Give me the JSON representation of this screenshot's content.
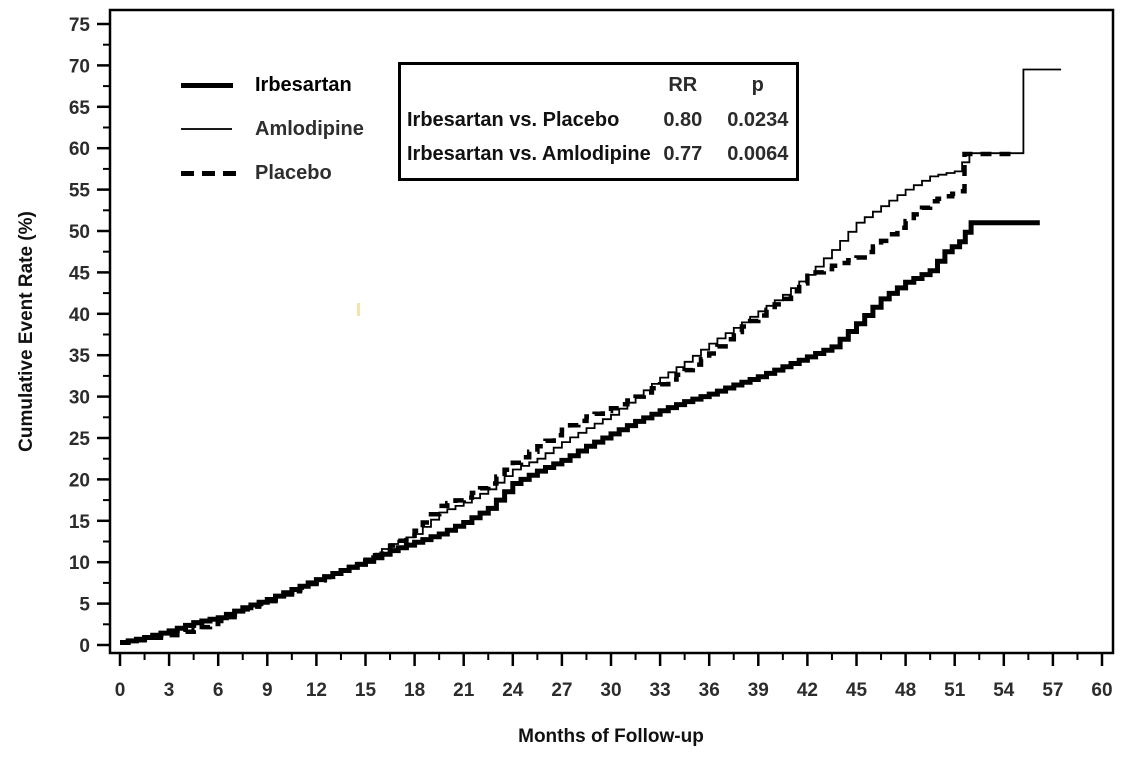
{
  "figure": {
    "background": "#ffffff",
    "line_color": "#000000"
  },
  "legend": {
    "items": [
      {
        "label": "Irbesartan",
        "line_style": "solid-thick"
      },
      {
        "label": "Amlodipine",
        "line_style": "solid-thin"
      },
      {
        "label": "Placebo",
        "line_style": "dashed-thick"
      }
    ]
  },
  "stats_box": {
    "col_headers": [
      "RR",
      "p"
    ],
    "rows": [
      {
        "label": "Irbesartan vs. Placebo",
        "rr": "0.80",
        "p": "0.0234"
      },
      {
        "label": "Irbesartan vs. Amlodipine",
        "rr": "0.77",
        "p": "0.0064"
      }
    ]
  },
  "chart_data": {
    "type": "line",
    "step": true,
    "title": "",
    "xlabel": "Months of Follow-up",
    "ylabel": "Cumulative Event Rate (%)",
    "xlim": [
      0,
      60
    ],
    "ylim": [
      0,
      75
    ],
    "x_major_ticks": [
      0,
      3,
      6,
      9,
      12,
      15,
      18,
      21,
      24,
      27,
      30,
      33,
      36,
      39,
      42,
      45,
      48,
      51,
      54,
      57,
      60
    ],
    "x_minor_step": 1.5,
    "y_major_ticks": [
      0,
      5,
      10,
      15,
      20,
      25,
      30,
      35,
      40,
      45,
      50,
      55,
      60,
      65,
      70,
      75
    ],
    "y_minor_step": 2.5,
    "grid": false,
    "legend_position": "top-left-inside",
    "series": [
      {
        "name": "Irbesartan",
        "line_style": "solid-thick",
        "points": [
          [
            0,
            0.3
          ],
          [
            1.5,
            0.9
          ],
          [
            3,
            1.7
          ],
          [
            4.5,
            2.7
          ],
          [
            6,
            3.3
          ],
          [
            7.5,
            4.5
          ],
          [
            9,
            5.5
          ],
          [
            10.5,
            6.7
          ],
          [
            12,
            7.9
          ],
          [
            13.5,
            9.0
          ],
          [
            15,
            10.1
          ],
          [
            16.5,
            11.4
          ],
          [
            18,
            12.4
          ],
          [
            19.5,
            13.4
          ],
          [
            21,
            14.8
          ],
          [
            22.5,
            16.5
          ],
          [
            24,
            19.5
          ],
          [
            25.5,
            21.0
          ],
          [
            27,
            22.3
          ],
          [
            28.5,
            24.0
          ],
          [
            30,
            25.5
          ],
          [
            31.5,
            27.0
          ],
          [
            33,
            28.3
          ],
          [
            34.5,
            29.4
          ],
          [
            36,
            30.3
          ],
          [
            37.5,
            31.4
          ],
          [
            39,
            32.4
          ],
          [
            40.5,
            33.6
          ],
          [
            42,
            34.8
          ],
          [
            43.5,
            36.0
          ],
          [
            45,
            38.8
          ],
          [
            46.5,
            41.8
          ],
          [
            48,
            43.8
          ],
          [
            49.5,
            45.2
          ],
          [
            50.4,
            47.5
          ],
          [
            51.3,
            48.7
          ],
          [
            52,
            51.0
          ],
          [
            56.2,
            51.0
          ]
        ]
      },
      {
        "name": "Amlodipine",
        "line_style": "solid-thin",
        "points": [
          [
            0,
            0.3
          ],
          [
            1.5,
            0.8
          ],
          [
            3,
            1.6
          ],
          [
            4.5,
            2.5
          ],
          [
            6,
            3.2
          ],
          [
            7.5,
            4.4
          ],
          [
            9,
            5.4
          ],
          [
            10.5,
            6.6
          ],
          [
            12,
            7.8
          ],
          [
            13.5,
            9.0
          ],
          [
            15,
            10.4
          ],
          [
            16.5,
            12.2
          ],
          [
            18,
            13.4
          ],
          [
            19.5,
            16.0
          ],
          [
            21,
            17.2
          ],
          [
            22.5,
            18.8
          ],
          [
            24,
            21.2
          ],
          [
            25.5,
            22.5
          ],
          [
            27,
            24.5
          ],
          [
            28.5,
            26.2
          ],
          [
            30,
            27.8
          ],
          [
            31.5,
            30.0
          ],
          [
            33,
            32.3
          ],
          [
            34.5,
            34.2
          ],
          [
            36,
            36.4
          ],
          [
            37.5,
            38.3
          ],
          [
            39,
            40.3
          ],
          [
            40.5,
            42.3
          ],
          [
            42,
            44.7
          ],
          [
            43.5,
            47.7
          ],
          [
            45,
            51.0
          ],
          [
            46.5,
            53.0
          ],
          [
            48,
            55.0
          ],
          [
            49.5,
            56.6
          ],
          [
            51,
            57.2
          ],
          [
            51.9,
            59.4
          ],
          [
            55.2,
            59.4
          ],
          [
            55.2,
            69.5
          ],
          [
            57.5,
            69.5
          ]
        ]
      },
      {
        "name": "Placebo",
        "line_style": "dashed-thick",
        "points": [
          [
            0,
            0.3
          ],
          [
            1.5,
            0.7
          ],
          [
            3,
            1.2
          ],
          [
            4.5,
            1.8
          ],
          [
            6,
            2.9
          ],
          [
            7.5,
            4.3
          ],
          [
            9,
            5.3
          ],
          [
            10.5,
            6.5
          ],
          [
            12,
            7.8
          ],
          [
            13.5,
            9.0
          ],
          [
            15,
            10.3
          ],
          [
            16.5,
            12.0
          ],
          [
            18,
            13.8
          ],
          [
            19.5,
            16.8
          ],
          [
            21,
            17.8
          ],
          [
            22.5,
            19.5
          ],
          [
            24,
            22.0
          ],
          [
            25.5,
            24.0
          ],
          [
            27,
            26.0
          ],
          [
            28.5,
            27.6
          ],
          [
            30,
            28.6
          ],
          [
            31.5,
            30.0
          ],
          [
            33,
            31.5
          ],
          [
            34.5,
            33.2
          ],
          [
            36,
            35.2
          ],
          [
            37.5,
            37.8
          ],
          [
            39,
            39.8
          ],
          [
            40.5,
            41.8
          ],
          [
            42,
            44.6
          ],
          [
            43.5,
            45.8
          ],
          [
            45,
            46.8
          ],
          [
            46.5,
            48.8
          ],
          [
            48,
            51.2
          ],
          [
            49.5,
            53.6
          ],
          [
            51.3,
            54.8
          ],
          [
            51.6,
            59.3
          ],
          [
            54.6,
            59.3
          ]
        ]
      }
    ],
    "annotations": {
      "comparisons": [
        {
          "label": "Irbesartan vs. Placebo",
          "RR": 0.8,
          "p": 0.0234
        },
        {
          "label": "Irbesartan vs. Amlodipine",
          "RR": 0.77,
          "p": 0.0064
        }
      ]
    }
  }
}
